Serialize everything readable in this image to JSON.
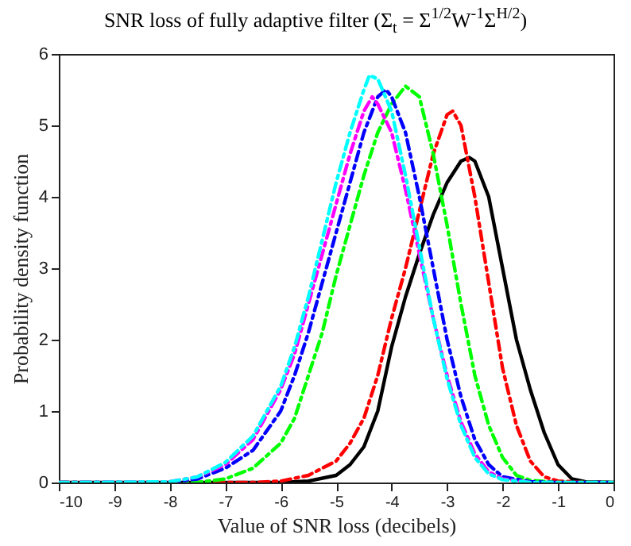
{
  "chart_data": {
    "type": "line",
    "title": "SNR loss of fully adaptive filter (Σ$_{t}$ = Σ$^{1/2}$W$^{-1}$Σ$^{H/2}$)",
    "xlabel": "Value of SNR loss (decibels)",
    "ylabel": "Probability density function",
    "xlim": [
      -10,
      0
    ],
    "ylim": [
      0,
      6
    ],
    "xticks": [
      -10,
      -9,
      -8,
      -7,
      -6,
      -5,
      -4,
      -3,
      -2,
      -1,
      0
    ],
    "yticks": [
      0,
      1,
      2,
      3,
      4,
      5,
      6
    ],
    "grid": false,
    "marker": "none",
    "series": [
      {
        "color": "#000000",
        "line_style": "solid",
        "x": [
          -10,
          -6,
          -5.5,
          -5,
          -4.75,
          -4.5,
          -4.25,
          -4,
          -3.75,
          -3.5,
          -3.25,
          -3,
          -2.75,
          -2.6,
          -2.5,
          -2.25,
          -2,
          -1.75,
          -1.5,
          -1.25,
          -1,
          -0.75,
          -0.5,
          0
        ],
        "values": [
          0,
          0,
          0.02,
          0.1,
          0.25,
          0.5,
          1.0,
          1.9,
          2.6,
          3.2,
          3.75,
          4.2,
          4.5,
          4.55,
          4.5,
          4.0,
          3.0,
          2.0,
          1.3,
          0.7,
          0.25,
          0.05,
          0.01,
          0
        ]
      },
      {
        "color": "#ff0000",
        "line_style": "dashed",
        "x": [
          -10,
          -6.5,
          -6,
          -5.5,
          -5,
          -4.75,
          -4.5,
          -4.25,
          -4,
          -3.75,
          -3.5,
          -3.25,
          -3,
          -2.9,
          -2.75,
          -2.5,
          -2.25,
          -2,
          -1.75,
          -1.5,
          -1.25,
          -1,
          -0.5,
          0
        ],
        "values": [
          0,
          0,
          0.02,
          0.1,
          0.3,
          0.55,
          0.9,
          1.5,
          2.3,
          3.0,
          3.8,
          4.6,
          5.15,
          5.2,
          5.0,
          4.0,
          2.8,
          1.6,
          0.8,
          0.3,
          0.08,
          0.02,
          0,
          0
        ]
      },
      {
        "color": "#00ff00",
        "line_style": "dashed",
        "x": [
          -10,
          -7.5,
          -7,
          -6.5,
          -6,
          -5.75,
          -5.5,
          -5.25,
          -5,
          -4.75,
          -4.5,
          -4.25,
          -4,
          -3.75,
          -3.5,
          -3.25,
          -3,
          -2.75,
          -2.5,
          -2.25,
          -2,
          -1.75,
          -1.5,
          -1,
          0
        ],
        "values": [
          0,
          0,
          0.05,
          0.2,
          0.55,
          0.9,
          1.5,
          2.1,
          2.9,
          3.6,
          4.3,
          4.9,
          5.3,
          5.55,
          5.4,
          4.6,
          3.6,
          2.5,
          1.5,
          0.8,
          0.35,
          0.1,
          0.03,
          0,
          0
        ]
      },
      {
        "color": "#0000ff",
        "line_style": "dashed",
        "x": [
          -10,
          -8,
          -7.5,
          -7,
          -6.5,
          -6,
          -5.75,
          -5.5,
          -5.25,
          -5,
          -4.75,
          -4.5,
          -4.25,
          -4.1,
          -4,
          -3.75,
          -3.5,
          -3.25,
          -3,
          -2.75,
          -2.5,
          -2.25,
          -2,
          -1.5,
          -1,
          0
        ],
        "values": [
          0,
          0,
          0.05,
          0.2,
          0.45,
          1.0,
          1.5,
          2.1,
          2.8,
          3.5,
          4.2,
          4.9,
          5.4,
          5.5,
          5.4,
          4.9,
          4.0,
          3.0,
          2.0,
          1.2,
          0.6,
          0.25,
          0.08,
          0.01,
          0,
          0
        ]
      },
      {
        "color": "#ff00ff",
        "line_style": "dashed",
        "x": [
          -10,
          -8,
          -7.5,
          -7,
          -6.5,
          -6,
          -5.75,
          -5.5,
          -5.25,
          -5,
          -4.75,
          -4.5,
          -4.35,
          -4.25,
          -4,
          -3.75,
          -3.5,
          -3.25,
          -3,
          -2.75,
          -2.5,
          -2.25,
          -2,
          -1.5
        ],
        "values": [
          0,
          0.01,
          0.08,
          0.25,
          0.6,
          1.3,
          1.8,
          2.5,
          3.2,
          3.9,
          4.6,
          5.2,
          5.4,
          5.3,
          4.9,
          4.1,
          3.2,
          2.3,
          1.5,
          0.85,
          0.4,
          0.15,
          0.05,
          0
        ]
      },
      {
        "color": "#00ffff",
        "line_style": "dashed",
        "x": [
          -10,
          -8,
          -7.5,
          -7,
          -6.5,
          -6,
          -5.75,
          -5.5,
          -5.25,
          -5,
          -4.75,
          -4.5,
          -4.4,
          -4.25,
          -4,
          -3.75,
          -3.5,
          -3.25,
          -3,
          -2.75,
          -2.5,
          -2.25,
          -2,
          -1.5,
          -1,
          0
        ],
        "values": [
          0,
          0.01,
          0.08,
          0.28,
          0.65,
          1.35,
          1.9,
          2.6,
          3.4,
          4.2,
          4.9,
          5.5,
          5.7,
          5.65,
          5.2,
          4.3,
          3.3,
          2.3,
          1.45,
          0.8,
          0.35,
          0.12,
          0.04,
          0,
          0,
          0
        ]
      }
    ]
  }
}
